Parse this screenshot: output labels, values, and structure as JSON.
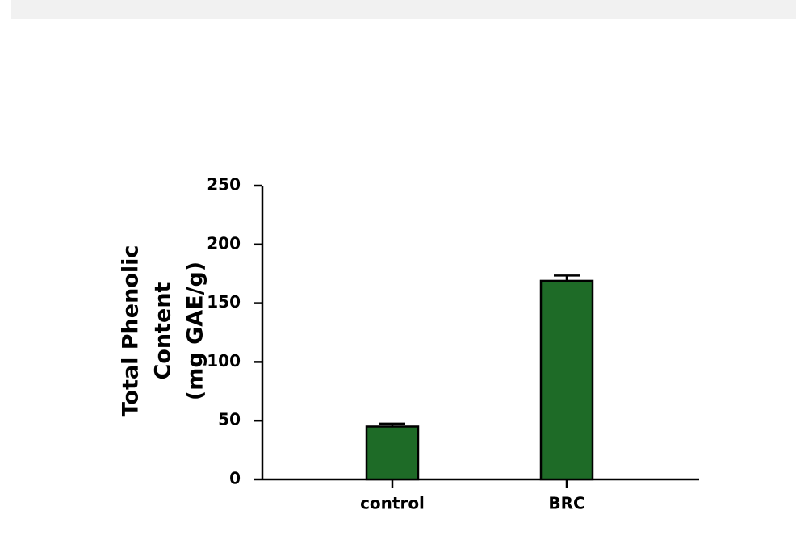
{
  "chart_data": {
    "type": "bar",
    "y_label": [
      "Total Phenolic",
      "Content",
      "(mg GAE/g)"
    ],
    "categories": [
      "control",
      "BRC"
    ],
    "values": [
      45,
      169
    ],
    "errors": [
      2.5,
      4.5
    ],
    "color": "#1e6b27",
    "ylim": [
      0,
      250
    ],
    "yticks": [
      0,
      50,
      100,
      150,
      200,
      250
    ]
  }
}
